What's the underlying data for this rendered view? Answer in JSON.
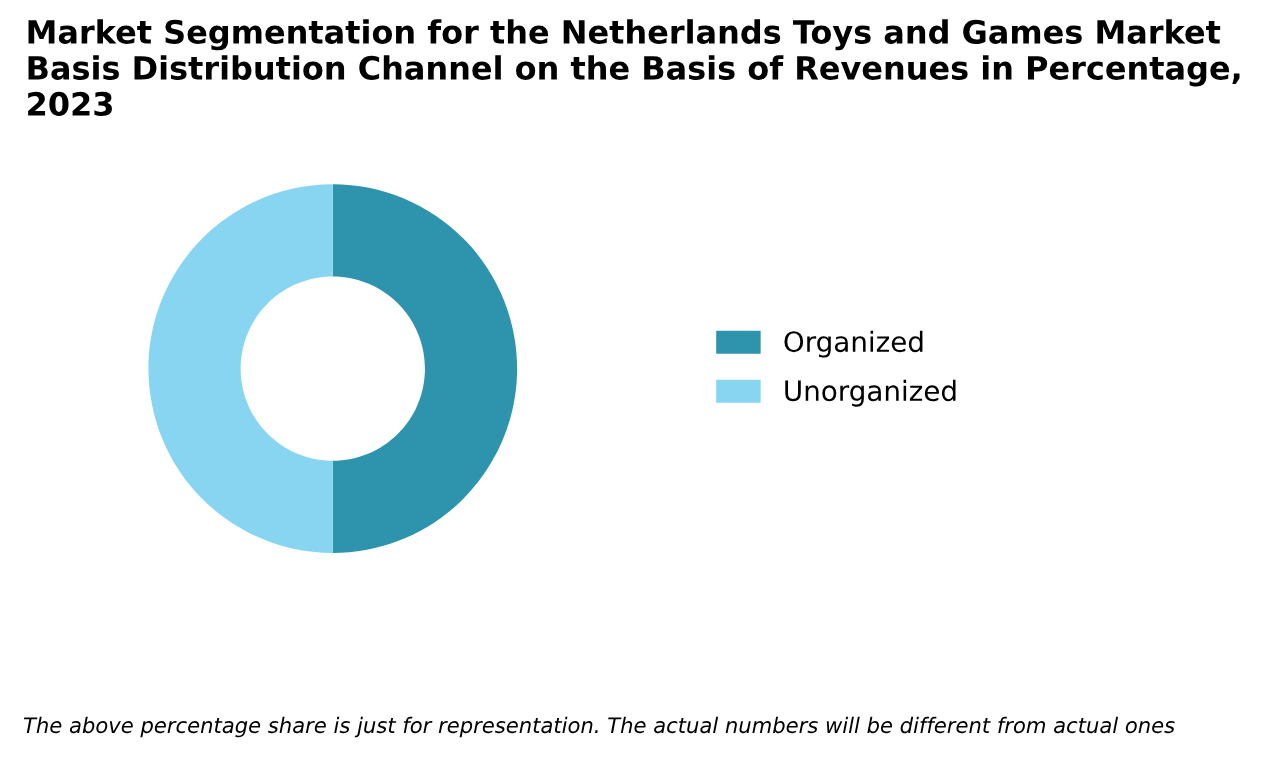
{
  "chart_data": {
    "type": "donut",
    "title": "Market Segmentation for the Netherlands Toys and Games Market Basis Distribution Channel on the Basis of Revenues in Percentage, 2023",
    "categories": [
      "Organized",
      "Unorganized"
    ],
    "values": [
      50,
      50
    ],
    "colors": [
      "#2e93ad",
      "#87d5f0"
    ],
    "legend": "right",
    "annotations": [
      "The above percentage share is just for representation. The actual numbers will be different from actual ones"
    ]
  }
}
